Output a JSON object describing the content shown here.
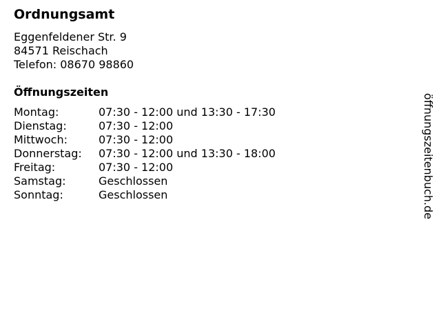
{
  "title": "Ordnungsamt",
  "address": {
    "street": "Eggenfeldener Str. 9",
    "city": "84571 Reischach",
    "phone": "Telefon: 08670 98860"
  },
  "hours_heading": "Öffnungszeiten",
  "hours": [
    {
      "day": "Montag:",
      "time": "07:30 - 12:00 und 13:30 - 17:30"
    },
    {
      "day": "Dienstag:",
      "time": "07:30 - 12:00"
    },
    {
      "day": "Mittwoch:",
      "time": "07:30 - 12:00"
    },
    {
      "day": "Donnerstag:",
      "time": "07:30 - 12:00 und 13:30 - 18:00"
    },
    {
      "day": "Freitag:",
      "time": "07:30 - 12:00"
    },
    {
      "day": "Samstag:",
      "time": "Geschlossen"
    },
    {
      "day": "Sonntag:",
      "time": "Geschlossen"
    }
  ],
  "watermark": "öffnungszeitenbuch.de"
}
